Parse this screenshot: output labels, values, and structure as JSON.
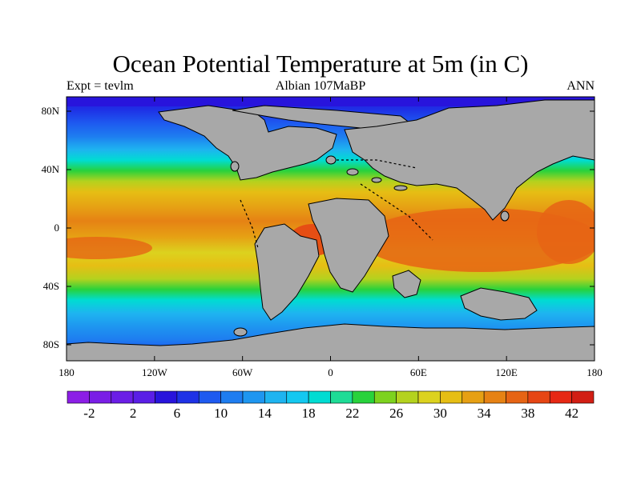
{
  "title": "Ocean Potential Temperature at 5m (in C)",
  "subtitle_left": "Expt = tevlm",
  "subtitle_center": "Albian   107MaBP",
  "subtitle_right": "ANN",
  "lat_labels": [
    "80N",
    "40N",
    "0",
    "40S",
    "80S"
  ],
  "lon_labels": [
    "180",
    "120W",
    "60W",
    "0",
    "60E",
    "120E",
    "180"
  ],
  "colorbar": {
    "labels": [
      "-2",
      "2",
      "6",
      "10",
      "14",
      "18",
      "22",
      "26",
      "30",
      "34",
      "38",
      "42"
    ],
    "colors": [
      "#8c1ee6",
      "#7a1ee6",
      "#6b1ee6",
      "#5a1ee6",
      "#2814dc",
      "#1e32e6",
      "#1e5af0",
      "#1e7df0",
      "#1e96f0",
      "#1eb4f0",
      "#14c8f0",
      "#00dcd2",
      "#1edc96",
      "#28d23c",
      "#7dd21e",
      "#b4d21e",
      "#dcd21e",
      "#e6be14",
      "#e6a014",
      "#e68214",
      "#e66414",
      "#e64614",
      "#e62814",
      "#d21e14"
    ]
  },
  "colors": {
    "land": "#a8a8a8",
    "coastline": "#000000"
  }
}
